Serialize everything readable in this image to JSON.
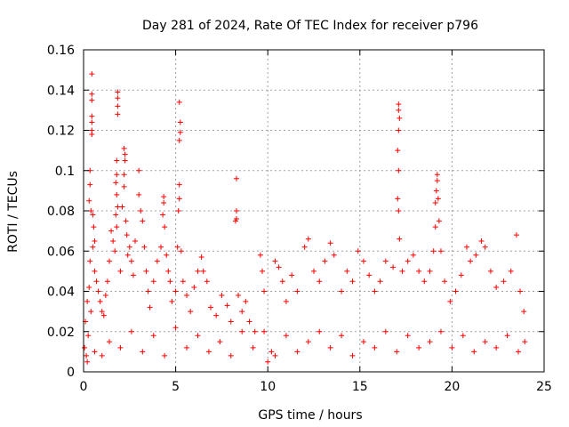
{
  "chart_data": {
    "type": "scatter",
    "title": "Day 281 of 2024, Rate Of TEC Index for receiver p796",
    "xlabel": "GPS time / hours",
    "ylabel": "ROTI / TECUs",
    "xlim": [
      0,
      25
    ],
    "ylim": [
      0,
      0.16
    ],
    "x_ticks": [
      0,
      5,
      10,
      15,
      20,
      25
    ],
    "x_tick_labels": [
      "0",
      "5",
      "10",
      "15",
      "20",
      "25"
    ],
    "y_ticks": [
      0,
      0.02,
      0.04,
      0.06,
      0.08,
      0.1,
      0.12,
      0.14,
      0.16
    ],
    "y_tick_labels": [
      "0",
      "0.02",
      "0.04",
      "0.06",
      "0.08",
      "0.1",
      "0.12",
      "0.14",
      "0.16"
    ],
    "grid": true,
    "marker": "+",
    "color": "#ff0000",
    "series": [
      {
        "name": "ROTI",
        "points": [
          [
            0.05,
            0.012
          ],
          [
            0.1,
            0.025
          ],
          [
            0.15,
            0.008
          ],
          [
            0.2,
            0.035
          ],
          [
            0.25,
            0.018
          ],
          [
            0.3,
            0.042
          ],
          [
            0.35,
            0.055
          ],
          [
            0.4,
            0.03
          ],
          [
            0.45,
            0.148
          ],
          [
            0.45,
            0.138
          ],
          [
            0.45,
            0.135
          ],
          [
            0.45,
            0.127
          ],
          [
            0.45,
            0.124
          ],
          [
            0.45,
            0.12
          ],
          [
            0.45,
            0.118
          ],
          [
            0.35,
            0.1
          ],
          [
            0.35,
            0.093
          ],
          [
            0.3,
            0.085
          ],
          [
            0.4,
            0.08
          ],
          [
            0.5,
            0.078
          ],
          [
            0.55,
            0.072
          ],
          [
            0.6,
            0.065
          ],
          [
            0.5,
            0.062
          ],
          [
            0.6,
            0.05
          ],
          [
            0.7,
            0.045
          ],
          [
            0.8,
            0.04
          ],
          [
            0.9,
            0.035
          ],
          [
            1.0,
            0.03
          ],
          [
            1.1,
            0.028
          ],
          [
            1.2,
            0.038
          ],
          [
            1.3,
            0.045
          ],
          [
            1.4,
            0.055
          ],
          [
            1.5,
            0.07
          ],
          [
            1.6,
            0.065
          ],
          [
            1.7,
            0.06
          ],
          [
            1.8,
            0.072
          ],
          [
            1.85,
            0.139
          ],
          [
            1.85,
            0.136
          ],
          [
            1.85,
            0.132
          ],
          [
            1.85,
            0.128
          ],
          [
            1.8,
            0.105
          ],
          [
            1.8,
            0.098
          ],
          [
            1.75,
            0.094
          ],
          [
            1.8,
            0.088
          ],
          [
            1.85,
            0.082
          ],
          [
            1.75,
            0.078
          ],
          [
            2.1,
            0.082
          ],
          [
            2.2,
            0.092
          ],
          [
            2.2,
            0.098
          ],
          [
            2.25,
            0.105
          ],
          [
            2.25,
            0.108
          ],
          [
            2.2,
            0.111
          ],
          [
            2.3,
            0.075
          ],
          [
            2.35,
            0.068
          ],
          [
            2.0,
            0.05
          ],
          [
            2.4,
            0.058
          ],
          [
            2.5,
            0.062
          ],
          [
            2.6,
            0.055
          ],
          [
            2.7,
            0.048
          ],
          [
            2.8,
            0.065
          ],
          [
            3.0,
            0.1
          ],
          [
            3.0,
            0.088
          ],
          [
            3.1,
            0.08
          ],
          [
            3.2,
            0.075
          ],
          [
            3.3,
            0.062
          ],
          [
            3.4,
            0.05
          ],
          [
            3.5,
            0.04
          ],
          [
            3.6,
            0.032
          ],
          [
            3.8,
            0.045
          ],
          [
            4.0,
            0.055
          ],
          [
            4.2,
            0.062
          ],
          [
            4.3,
            0.078
          ],
          [
            4.35,
            0.087
          ],
          [
            4.35,
            0.084
          ],
          [
            4.4,
            0.072
          ],
          [
            4.5,
            0.058
          ],
          [
            4.6,
            0.05
          ],
          [
            4.7,
            0.045
          ],
          [
            4.8,
            0.035
          ],
          [
            5.0,
            0.04
          ],
          [
            5.1,
            0.062
          ],
          [
            5.15,
            0.08
          ],
          [
            5.2,
            0.086
          ],
          [
            5.2,
            0.093
          ],
          [
            5.2,
            0.115
          ],
          [
            5.25,
            0.119
          ],
          [
            5.25,
            0.124
          ],
          [
            5.2,
            0.134
          ],
          [
            5.3,
            0.06
          ],
          [
            5.4,
            0.045
          ],
          [
            5.6,
            0.038
          ],
          [
            5.8,
            0.03
          ],
          [
            6.0,
            0.042
          ],
          [
            6.2,
            0.05
          ],
          [
            6.4,
            0.057
          ],
          [
            6.5,
            0.05
          ],
          [
            6.7,
            0.045
          ],
          [
            6.9,
            0.032
          ],
          [
            7.2,
            0.028
          ],
          [
            7.5,
            0.038
          ],
          [
            7.8,
            0.033
          ],
          [
            8.0,
            0.025
          ],
          [
            8.3,
            0.096
          ],
          [
            8.3,
            0.08
          ],
          [
            8.3,
            0.076
          ],
          [
            8.25,
            0.075
          ],
          [
            8.4,
            0.038
          ],
          [
            8.6,
            0.03
          ],
          [
            8.8,
            0.035
          ],
          [
            9.0,
            0.025
          ],
          [
            9.3,
            0.02
          ],
          [
            9.6,
            0.058
          ],
          [
            9.7,
            0.05
          ],
          [
            9.8,
            0.04
          ],
          [
            10.0,
            0.005
          ],
          [
            10.2,
            0.01
          ],
          [
            10.4,
            0.055
          ],
          [
            10.6,
            0.052
          ],
          [
            10.8,
            0.045
          ],
          [
            11.0,
            0.035
          ],
          [
            11.3,
            0.048
          ],
          [
            11.6,
            0.04
          ],
          [
            12.0,
            0.062
          ],
          [
            12.2,
            0.066
          ],
          [
            12.5,
            0.05
          ],
          [
            12.8,
            0.045
          ],
          [
            13.1,
            0.055
          ],
          [
            13.4,
            0.064
          ],
          [
            13.6,
            0.058
          ],
          [
            14.0,
            0.04
          ],
          [
            14.3,
            0.05
          ],
          [
            14.6,
            0.045
          ],
          [
            14.9,
            0.06
          ],
          [
            15.2,
            0.055
          ],
          [
            15.5,
            0.048
          ],
          [
            15.8,
            0.04
          ],
          [
            16.1,
            0.045
          ],
          [
            16.4,
            0.055
          ],
          [
            16.8,
            0.052
          ],
          [
            17.1,
            0.133
          ],
          [
            17.1,
            0.13
          ],
          [
            17.15,
            0.126
          ],
          [
            17.1,
            0.12
          ],
          [
            17.05,
            0.11
          ],
          [
            17.1,
            0.1
          ],
          [
            17.05,
            0.086
          ],
          [
            17.1,
            0.08
          ],
          [
            17.15,
            0.066
          ],
          [
            17.3,
            0.05
          ],
          [
            17.6,
            0.055
          ],
          [
            17.9,
            0.058
          ],
          [
            18.2,
            0.05
          ],
          [
            18.5,
            0.045
          ],
          [
            18.8,
            0.05
          ],
          [
            19.0,
            0.06
          ],
          [
            19.1,
            0.072
          ],
          [
            19.1,
            0.084
          ],
          [
            19.15,
            0.09
          ],
          [
            19.2,
            0.095
          ],
          [
            19.2,
            0.098
          ],
          [
            19.25,
            0.086
          ],
          [
            19.3,
            0.075
          ],
          [
            19.4,
            0.06
          ],
          [
            19.6,
            0.045
          ],
          [
            19.9,
            0.035
          ],
          [
            20.2,
            0.04
          ],
          [
            20.5,
            0.048
          ],
          [
            20.8,
            0.062
          ],
          [
            21.0,
            0.055
          ],
          [
            21.3,
            0.058
          ],
          [
            21.6,
            0.065
          ],
          [
            21.8,
            0.062
          ],
          [
            22.1,
            0.05
          ],
          [
            22.4,
            0.042
          ],
          [
            22.8,
            0.045
          ],
          [
            23.2,
            0.05
          ],
          [
            23.5,
            0.068
          ],
          [
            23.7,
            0.04
          ],
          [
            23.9,
            0.03
          ],
          [
            0.2,
            0.005
          ],
          [
            0.6,
            0.01
          ],
          [
            1.0,
            0.008
          ],
          [
            1.4,
            0.015
          ],
          [
            2.0,
            0.012
          ],
          [
            2.6,
            0.02
          ],
          [
            3.2,
            0.01
          ],
          [
            3.8,
            0.018
          ],
          [
            4.4,
            0.008
          ],
          [
            5.0,
            0.022
          ],
          [
            5.6,
            0.012
          ],
          [
            6.2,
            0.018
          ],
          [
            6.8,
            0.01
          ],
          [
            7.4,
            0.015
          ],
          [
            8.0,
            0.008
          ],
          [
            8.6,
            0.02
          ],
          [
            9.2,
            0.012
          ],
          [
            9.8,
            0.02
          ],
          [
            10.4,
            0.008
          ],
          [
            11.0,
            0.018
          ],
          [
            11.6,
            0.01
          ],
          [
            12.2,
            0.015
          ],
          [
            12.8,
            0.02
          ],
          [
            13.4,
            0.012
          ],
          [
            14.0,
            0.018
          ],
          [
            14.6,
            0.008
          ],
          [
            15.2,
            0.015
          ],
          [
            15.8,
            0.012
          ],
          [
            16.4,
            0.02
          ],
          [
            17.0,
            0.01
          ],
          [
            17.6,
            0.018
          ],
          [
            18.2,
            0.012
          ],
          [
            18.8,
            0.015
          ],
          [
            19.4,
            0.02
          ],
          [
            20.0,
            0.012
          ],
          [
            20.6,
            0.018
          ],
          [
            21.2,
            0.01
          ],
          [
            21.8,
            0.015
          ],
          [
            22.4,
            0.012
          ],
          [
            23.0,
            0.018
          ],
          [
            23.6,
            0.01
          ],
          [
            23.95,
            0.015
          ]
        ]
      }
    ]
  }
}
